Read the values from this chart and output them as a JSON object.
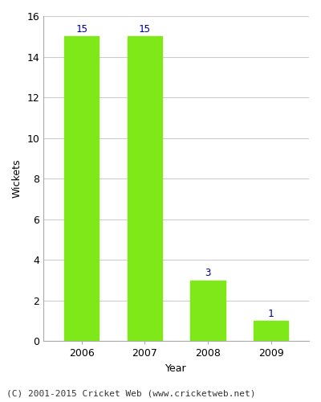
{
  "categories": [
    "2006",
    "2007",
    "2008",
    "2009"
  ],
  "values": [
    15,
    15,
    3,
    1
  ],
  "bar_color": "#7FE818",
  "title": "",
  "xlabel": "Year",
  "ylabel": "Wickets",
  "ylim": [
    0,
    16
  ],
  "yticks": [
    0,
    2,
    4,
    6,
    8,
    10,
    12,
    14,
    16
  ],
  "label_color": "#000099",
  "label_fontsize": 9,
  "axis_label_fontsize": 9,
  "tick_fontsize": 9,
  "footer_text": "(C) 2001-2015 Cricket Web (www.cricketweb.net)",
  "footer_fontsize": 8,
  "background_color": "#ffffff",
  "plot_bg_color": "#ffffff",
  "grid_color": "#cccccc",
  "spine_color": "#aaaaaa"
}
